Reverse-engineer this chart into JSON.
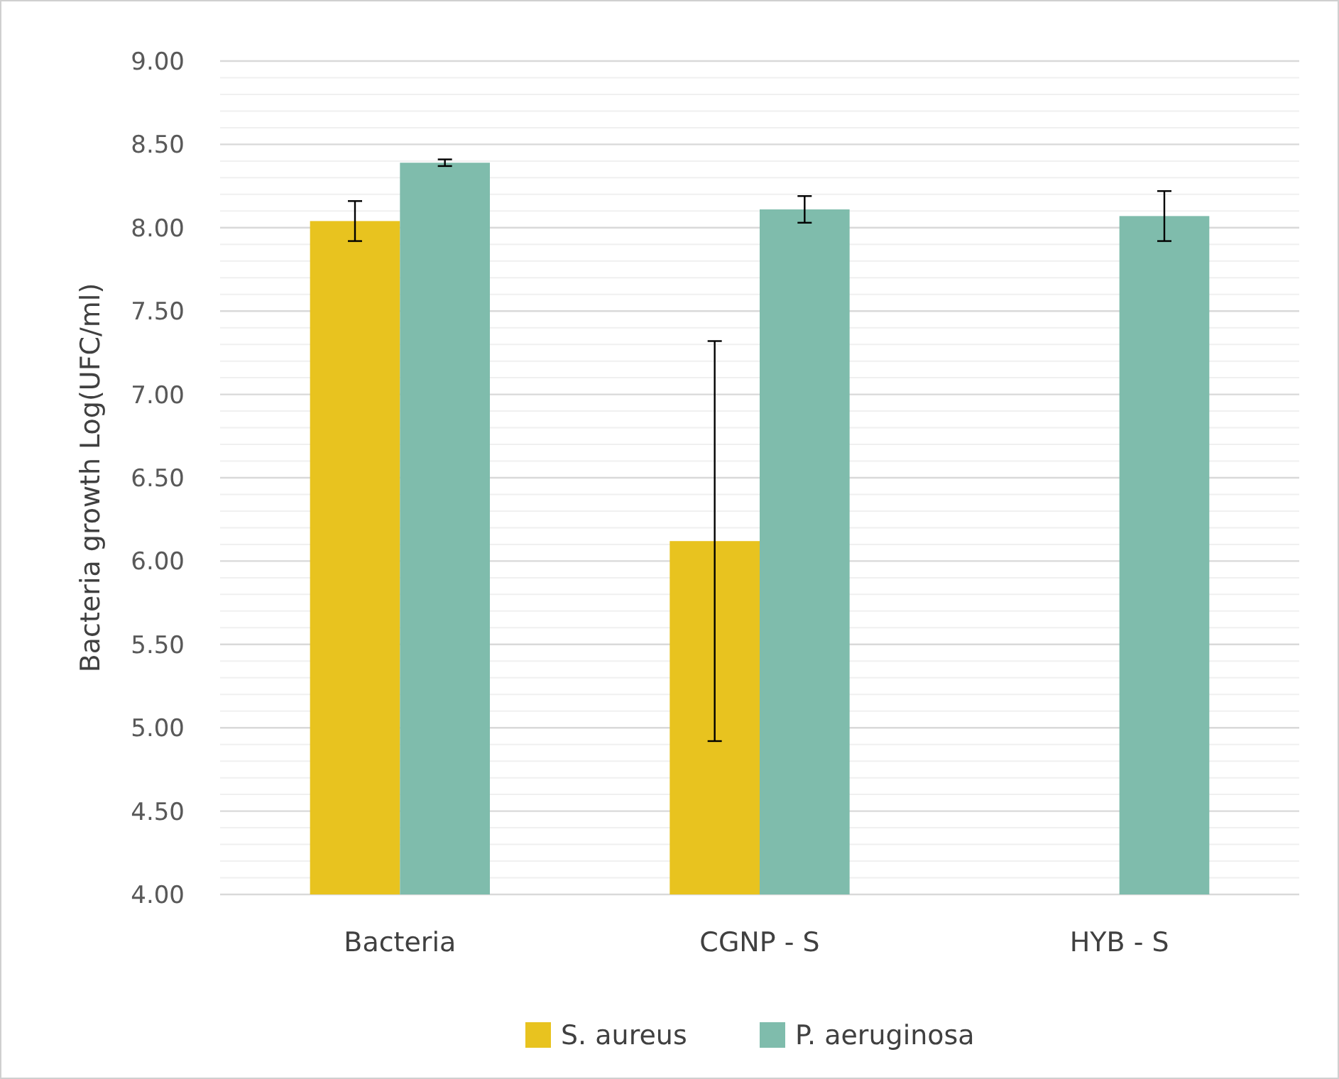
{
  "chart_data": {
    "type": "bar",
    "ylabel": "Bacteria growth Log(UFC/ml)",
    "categories": [
      "Bacteria",
      "CGNP - S",
      "HYB - S"
    ],
    "series": [
      {
        "name": "S. aureus",
        "color": "#e8c31f",
        "values": [
          8.04,
          6.12,
          4.0
        ],
        "errors": [
          0.12,
          1.2,
          null
        ]
      },
      {
        "name": "P. aeruginosa",
        "color": "#7fbcac",
        "values": [
          8.39,
          8.11,
          8.07
        ],
        "errors": [
          0.02,
          0.08,
          0.15
        ]
      }
    ],
    "ylim": [
      4,
      9
    ],
    "yticks": [
      {
        "value": 4,
        "label": "4.00"
      },
      {
        "value": 4.5,
        "label": "4.50"
      },
      {
        "value": 5,
        "label": "5.00"
      },
      {
        "value": 5.5,
        "label": "5.50"
      },
      {
        "value": 6,
        "label": "6.00"
      },
      {
        "value": 6.5,
        "label": "6.50"
      },
      {
        "value": 7,
        "label": "7.00"
      },
      {
        "value": 7.5,
        "label": "7.50"
      },
      {
        "value": 8,
        "label": "8.00"
      },
      {
        "value": 8.5,
        "label": "8.50"
      },
      {
        "value": 9,
        "label": "9.00"
      }
    ],
    "grid": true,
    "legend": "bottom"
  }
}
